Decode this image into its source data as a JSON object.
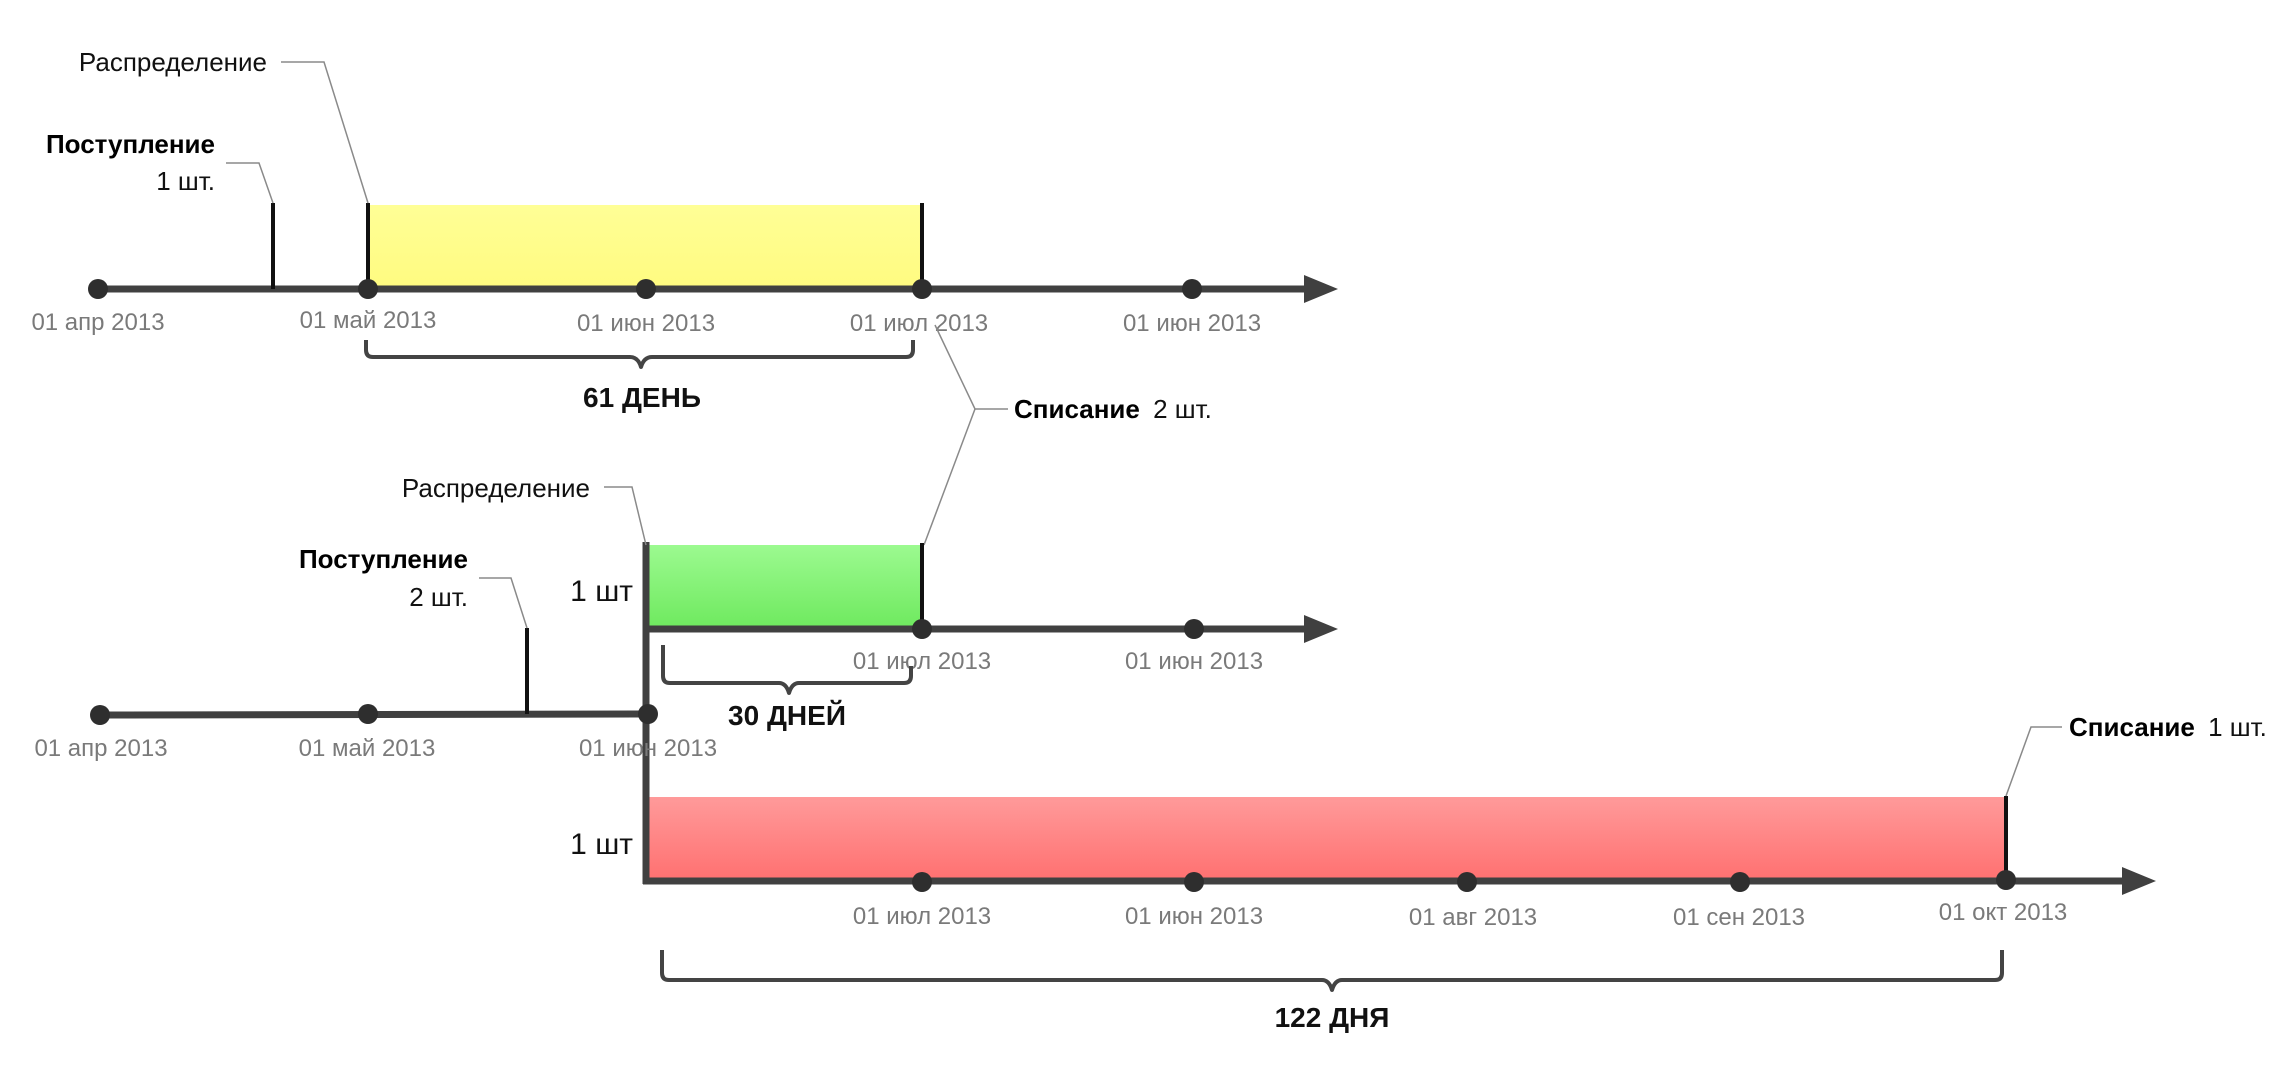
{
  "colors": {
    "axis": "#404040",
    "yellow_period": "#ffff8c",
    "green_period": "#7cf06e",
    "red_period": "#ff7b7b"
  },
  "timeline1": {
    "ticks": [
      "01 апр 2013",
      "01 май 2013",
      "01 июн 2013",
      "01 июл 2013",
      "01 июн 2013"
    ],
    "receipt": {
      "title": "Поступление",
      "qty": "1 шт."
    },
    "distribution": "Распределение",
    "duration": "61 ДЕНЬ"
  },
  "writeoff1": {
    "title": "Списание",
    "qty": "2 шт."
  },
  "timeline2": {
    "ticks": [
      "01 апр 2013",
      "01 май 2013",
      "01 июн 2013"
    ],
    "receipt": {
      "title": "Поступление",
      "qty": "2 шт."
    },
    "distribution": "Распределение"
  },
  "branch_green": {
    "qty": "1 шт",
    "ticks": [
      "01 июл 2013",
      "01 июн 2013"
    ],
    "duration": "30 ДНЕЙ"
  },
  "branch_red": {
    "qty": "1 шт",
    "ticks": [
      "01 июл 2013",
      "01 июн 2013",
      "01 авг 2013",
      "01 сен 2013",
      "01 окт 2013"
    ],
    "duration": "122 ДНЯ",
    "writeoff": {
      "title": "Списание",
      "qty": "1 шт."
    }
  }
}
